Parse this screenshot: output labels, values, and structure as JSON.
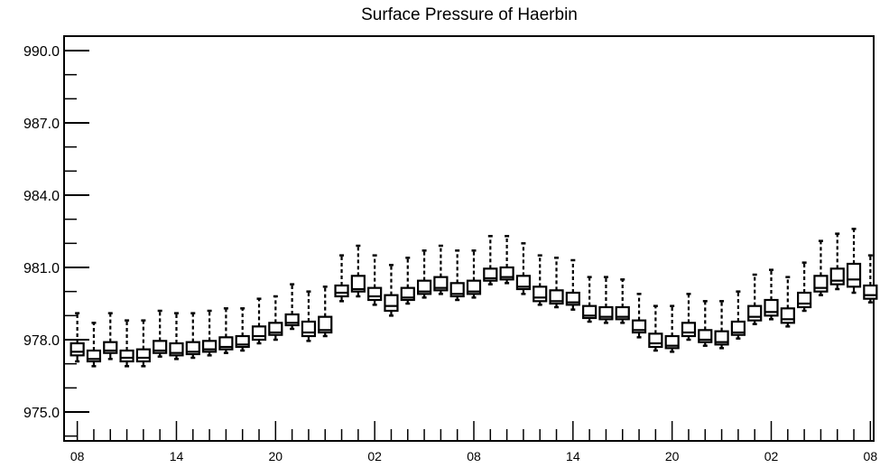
{
  "chart_data": {
    "type": "box",
    "title": "Surface Pressure of Haerbin",
    "xlabel": "",
    "ylabel": "",
    "ylim": [
      973.8,
      990.6
    ],
    "y_ticks": [
      "975.0",
      "978.0",
      "981.0",
      "984.0",
      "987.0",
      "990.0"
    ],
    "y_tick_values": [
      975.0,
      978.0,
      981.0,
      984.0,
      987.0,
      990.0
    ],
    "x_tick_labels": [
      "08",
      "14",
      "20",
      "02",
      "08",
      "14",
      "20",
      "02",
      "08"
    ],
    "x_tick_positions": [
      0,
      6,
      12,
      18,
      24,
      30,
      36,
      42,
      48
    ],
    "xlim": [
      -0.8,
      48.2
    ],
    "grid": false,
    "legend": "none",
    "boxes": [
      {
        "x": 0,
        "lo": 977.1,
        "q1": 977.35,
        "med": 977.5,
        "q3": 977.85,
        "hi": 979.1
      },
      {
        "x": 1,
        "lo": 976.9,
        "q1": 977.1,
        "med": 977.2,
        "q3": 977.55,
        "hi": 978.7
      },
      {
        "x": 2,
        "lo": 977.2,
        "q1": 977.45,
        "med": 977.55,
        "q3": 977.9,
        "hi": 979.1
      },
      {
        "x": 3,
        "lo": 976.9,
        "q1": 977.1,
        "med": 977.25,
        "q3": 977.55,
        "hi": 978.8
      },
      {
        "x": 4,
        "lo": 976.9,
        "q1": 977.1,
        "med": 977.25,
        "q3": 977.6,
        "hi": 978.8
      },
      {
        "x": 5,
        "lo": 977.3,
        "q1": 977.45,
        "med": 977.55,
        "q3": 977.95,
        "hi": 979.2
      },
      {
        "x": 6,
        "lo": 977.2,
        "q1": 977.35,
        "med": 977.45,
        "q3": 977.85,
        "hi": 979.1
      },
      {
        "x": 7,
        "lo": 977.25,
        "q1": 977.4,
        "med": 977.5,
        "q3": 977.9,
        "hi": 979.1
      },
      {
        "x": 8,
        "lo": 977.35,
        "q1": 977.5,
        "med": 977.6,
        "q3": 977.95,
        "hi": 979.2
      },
      {
        "x": 9,
        "lo": 977.45,
        "q1": 977.6,
        "med": 977.7,
        "q3": 978.1,
        "hi": 979.3
      },
      {
        "x": 10,
        "lo": 977.55,
        "q1": 977.7,
        "med": 977.8,
        "q3": 978.15,
        "hi": 979.3
      },
      {
        "x": 11,
        "lo": 977.85,
        "q1": 978.0,
        "med": 978.15,
        "q3": 978.55,
        "hi": 979.7
      },
      {
        "x": 12,
        "lo": 978.0,
        "q1": 978.2,
        "med": 978.3,
        "q3": 978.7,
        "hi": 979.8
      },
      {
        "x": 13,
        "lo": 978.45,
        "q1": 978.6,
        "med": 978.7,
        "q3": 979.05,
        "hi": 980.3
      },
      {
        "x": 14,
        "lo": 977.95,
        "q1": 978.15,
        "med": 978.3,
        "q3": 978.75,
        "hi": 980.0
      },
      {
        "x": 15,
        "lo": 978.15,
        "q1": 978.3,
        "med": 978.4,
        "q3": 978.95,
        "hi": 980.2
      },
      {
        "x": 16,
        "lo": 979.6,
        "q1": 979.8,
        "med": 979.95,
        "q3": 980.25,
        "hi": 981.5
      },
      {
        "x": 17,
        "lo": 979.8,
        "q1": 980.0,
        "med": 980.1,
        "q3": 980.65,
        "hi": 981.9
      },
      {
        "x": 18,
        "lo": 979.45,
        "q1": 979.65,
        "med": 979.8,
        "q3": 980.15,
        "hi": 981.5
      },
      {
        "x": 19,
        "lo": 979.0,
        "q1": 979.2,
        "med": 979.4,
        "q3": 979.85,
        "hi": 981.1
      },
      {
        "x": 20,
        "lo": 979.5,
        "q1": 979.65,
        "med": 979.75,
        "q3": 980.15,
        "hi": 981.4
      },
      {
        "x": 21,
        "lo": 979.75,
        "q1": 979.9,
        "med": 980.0,
        "q3": 980.45,
        "hi": 981.7
      },
      {
        "x": 22,
        "lo": 979.9,
        "q1": 980.05,
        "med": 980.15,
        "q3": 980.6,
        "hi": 981.9
      },
      {
        "x": 23,
        "lo": 979.65,
        "q1": 979.8,
        "med": 979.9,
        "q3": 980.35,
        "hi": 981.7
      },
      {
        "x": 24,
        "lo": 979.75,
        "q1": 979.9,
        "med": 980.0,
        "q3": 980.45,
        "hi": 981.7
      },
      {
        "x": 25,
        "lo": 980.3,
        "q1": 980.45,
        "med": 980.55,
        "q3": 980.95,
        "hi": 982.3
      },
      {
        "x": 26,
        "lo": 980.35,
        "q1": 980.5,
        "med": 980.6,
        "q3": 981.0,
        "hi": 982.3
      },
      {
        "x": 27,
        "lo": 979.9,
        "q1": 980.1,
        "med": 980.2,
        "q3": 980.65,
        "hi": 982.0
      },
      {
        "x": 28,
        "lo": 979.45,
        "q1": 979.6,
        "med": 979.75,
        "q3": 980.2,
        "hi": 981.5
      },
      {
        "x": 29,
        "lo": 979.35,
        "q1": 979.5,
        "med": 979.6,
        "q3": 980.05,
        "hi": 981.4
      },
      {
        "x": 30,
        "lo": 979.25,
        "q1": 979.45,
        "med": 979.55,
        "q3": 979.95,
        "hi": 981.3
      },
      {
        "x": 31,
        "lo": 978.75,
        "q1": 978.9,
        "med": 979.0,
        "q3": 979.4,
        "hi": 980.6
      },
      {
        "x": 32,
        "lo": 978.7,
        "q1": 978.85,
        "med": 978.95,
        "q3": 979.35,
        "hi": 980.6
      },
      {
        "x": 33,
        "lo": 978.7,
        "q1": 978.85,
        "med": 978.95,
        "q3": 979.35,
        "hi": 980.5
      },
      {
        "x": 34,
        "lo": 978.1,
        "q1": 978.3,
        "med": 978.4,
        "q3": 978.8,
        "hi": 979.9
      },
      {
        "x": 35,
        "lo": 977.55,
        "q1": 977.7,
        "med": 977.85,
        "q3": 978.25,
        "hi": 979.4
      },
      {
        "x": 36,
        "lo": 977.5,
        "q1": 977.65,
        "med": 977.75,
        "q3": 978.15,
        "hi": 979.4
      },
      {
        "x": 37,
        "lo": 978.0,
        "q1": 978.15,
        "med": 978.3,
        "q3": 978.7,
        "hi": 979.9
      },
      {
        "x": 38,
        "lo": 977.75,
        "q1": 977.9,
        "med": 978.0,
        "q3": 978.4,
        "hi": 979.6
      },
      {
        "x": 39,
        "lo": 977.65,
        "q1": 977.8,
        "med": 977.9,
        "q3": 978.35,
        "hi": 979.6
      },
      {
        "x": 40,
        "lo": 978.05,
        "q1": 978.2,
        "med": 978.3,
        "q3": 978.75,
        "hi": 980.0
      },
      {
        "x": 41,
        "lo": 978.65,
        "q1": 978.8,
        "med": 978.95,
        "q3": 979.4,
        "hi": 980.7
      },
      {
        "x": 42,
        "lo": 978.85,
        "q1": 979.0,
        "med": 979.15,
        "q3": 979.65,
        "hi": 980.9
      },
      {
        "x": 43,
        "lo": 978.55,
        "q1": 978.7,
        "med": 978.85,
        "q3": 979.3,
        "hi": 980.6
      },
      {
        "x": 44,
        "lo": 979.2,
        "q1": 979.35,
        "med": 979.5,
        "q3": 979.95,
        "hi": 981.2
      },
      {
        "x": 45,
        "lo": 979.85,
        "q1": 980.0,
        "med": 980.15,
        "q3": 980.65,
        "hi": 982.1
      },
      {
        "x": 46,
        "lo": 980.1,
        "q1": 980.3,
        "med": 980.45,
        "q3": 980.95,
        "hi": 982.4
      },
      {
        "x": 47,
        "lo": 979.95,
        "q1": 980.2,
        "med": 980.5,
        "q3": 981.15,
        "hi": 982.6
      },
      {
        "x": 48,
        "lo": 979.55,
        "q1": 979.7,
        "med": 979.85,
        "q3": 980.25,
        "hi": 981.5
      }
    ]
  }
}
